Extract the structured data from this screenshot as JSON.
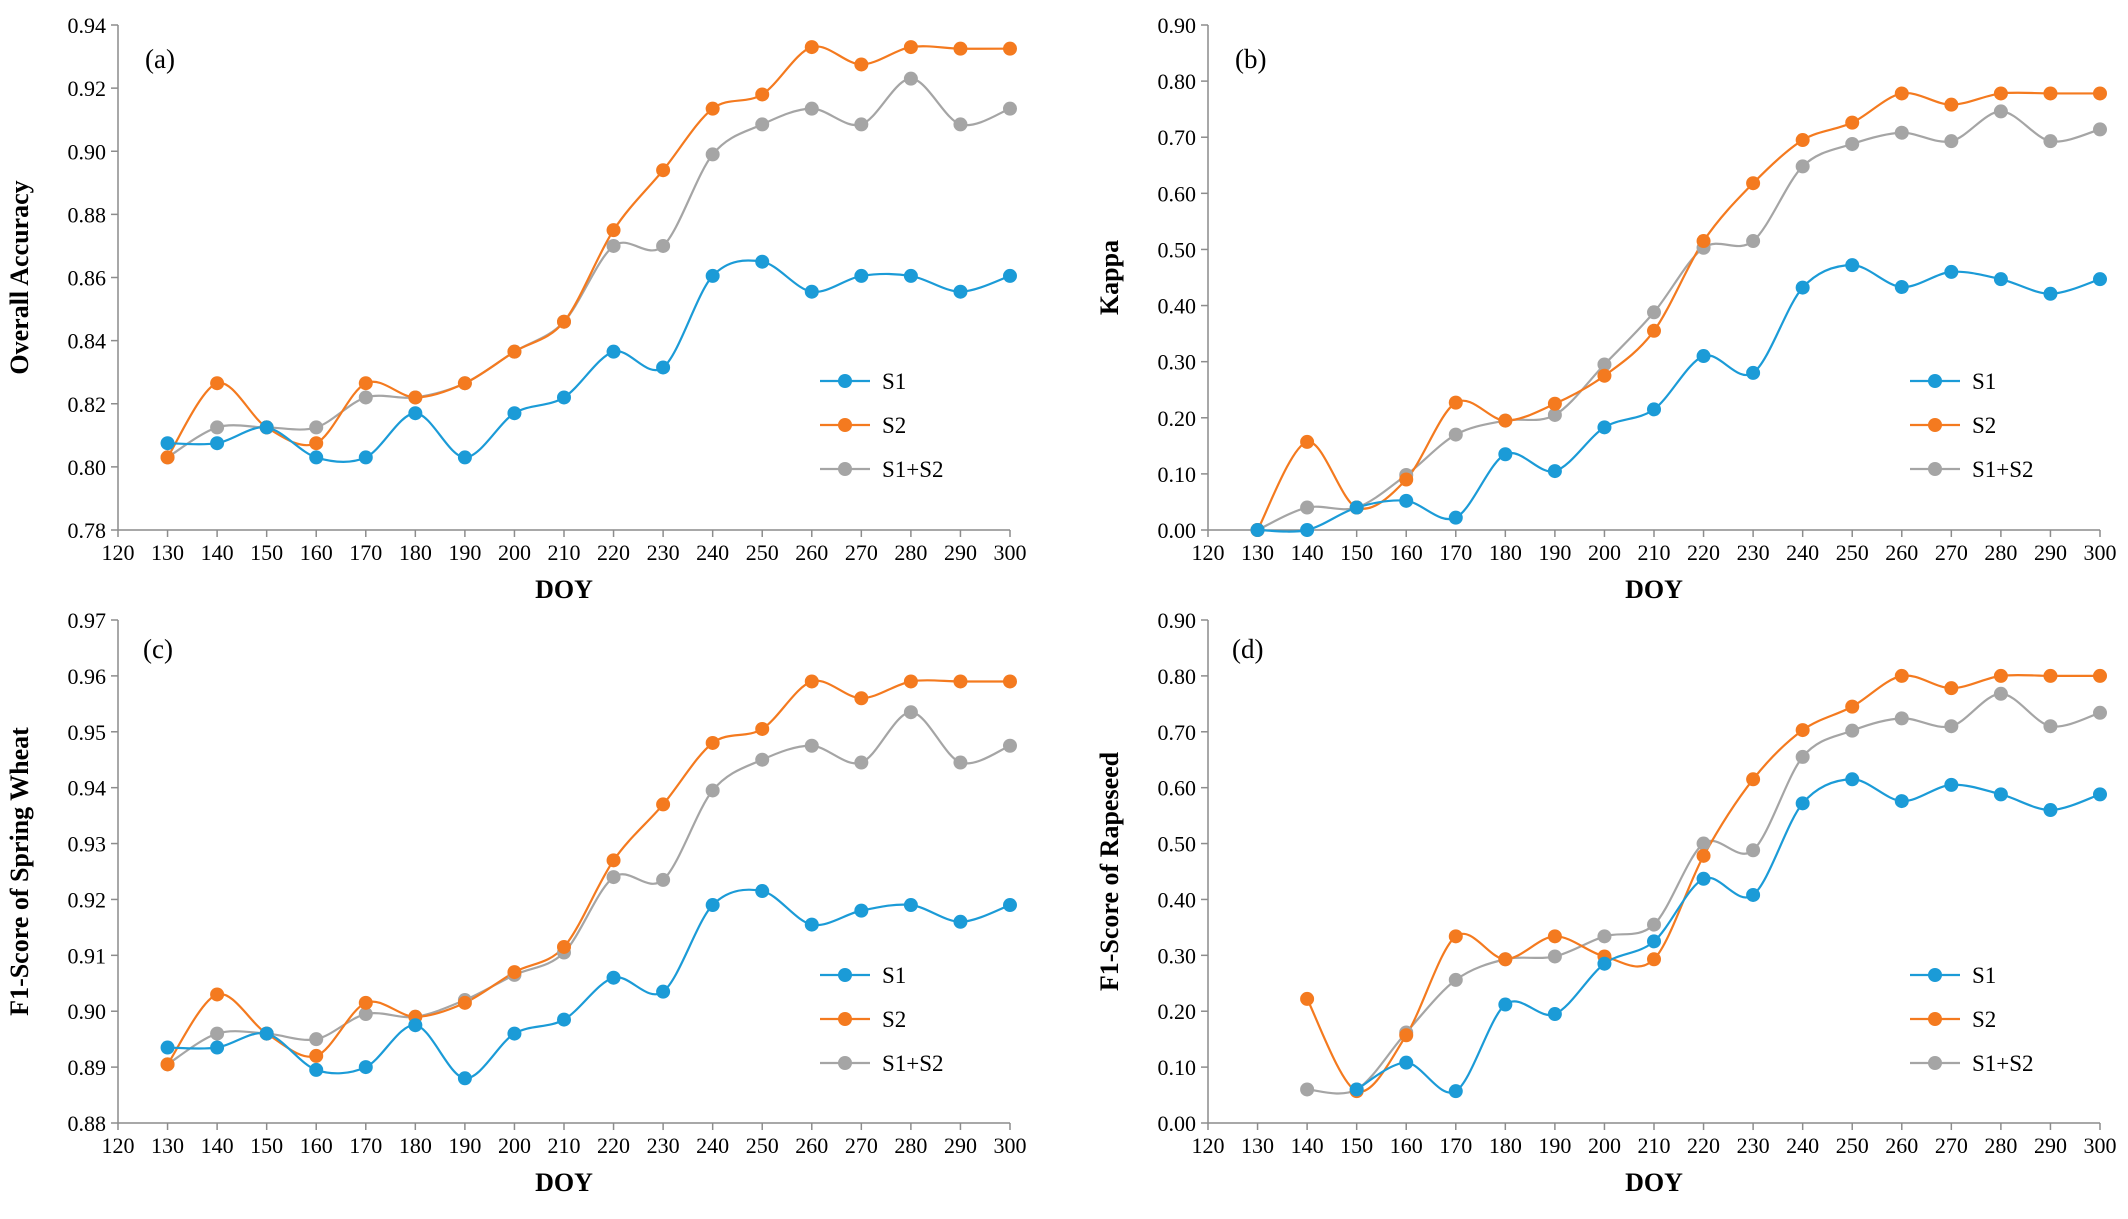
{
  "chart_data": [
    {
      "type": "line",
      "panel_label": "(a)",
      "title": "",
      "xlabel": "DOY",
      "ylabel": "Overall Accuracy",
      "xlim": [
        120,
        300
      ],
      "ylim": [
        0.78,
        0.94
      ],
      "xticks": [
        "120",
        "130",
        "140",
        "150",
        "160",
        "170",
        "180",
        "190",
        "200",
        "210",
        "220",
        "230",
        "240",
        "250",
        "260",
        "270",
        "280",
        "290",
        "300"
      ],
      "yticks": [
        "0.78",
        "0.80",
        "0.82",
        "0.84",
        "0.86",
        "0.88",
        "0.90",
        "0.92",
        "0.94"
      ],
      "legend_position": "right",
      "series": [
        {
          "name": "S1",
          "x": [
            130,
            140,
            150,
            160,
            170,
            180,
            190,
            200,
            210,
            220,
            230,
            240,
            250,
            260,
            270,
            280,
            290,
            300
          ],
          "values": [
            0.8075,
            0.8075,
            0.8125,
            0.803,
            0.803,
            0.817,
            0.803,
            0.817,
            0.822,
            0.8365,
            0.8315,
            0.8605,
            0.865,
            0.8555,
            0.8605,
            0.8605,
            0.8555,
            0.8605
          ]
        },
        {
          "name": "S2",
          "x": [
            130,
            140,
            150,
            160,
            170,
            180,
            190,
            200,
            210,
            220,
            230,
            240,
            250,
            260,
            270,
            280,
            290,
            300
          ],
          "values": [
            0.803,
            0.8265,
            0.8125,
            0.8075,
            0.8265,
            0.822,
            0.8265,
            0.8365,
            0.846,
            0.875,
            0.894,
            0.9135,
            0.918,
            0.933,
            0.9275,
            0.933,
            0.9325,
            0.9325
          ]
        },
        {
          "name": "S1+S2",
          "x": [
            130,
            140,
            150,
            160,
            170,
            180,
            190,
            200,
            210,
            220,
            230,
            240,
            250,
            260,
            270,
            280,
            290,
            300
          ],
          "values": [
            0.803,
            0.8125,
            0.8125,
            0.8125,
            0.822,
            0.822,
            0.8265,
            0.8365,
            0.846,
            0.87,
            0.87,
            0.899,
            0.9085,
            0.9135,
            0.9085,
            0.923,
            0.9085,
            0.9135
          ]
        }
      ]
    },
    {
      "type": "line",
      "panel_label": "(b)",
      "title": "",
      "xlabel": "DOY",
      "ylabel": "Kappa",
      "xlim": [
        120,
        300
      ],
      "ylim": [
        0.0,
        0.9
      ],
      "xticks": [
        "120",
        "130",
        "140",
        "150",
        "160",
        "170",
        "180",
        "190",
        "200",
        "210",
        "220",
        "230",
        "240",
        "250",
        "260",
        "270",
        "280",
        "290",
        "300"
      ],
      "yticks": [
        "0.00",
        "0.10",
        "0.20",
        "0.30",
        "0.40",
        "0.50",
        "0.60",
        "0.70",
        "0.80",
        "0.90"
      ],
      "legend_position": "right",
      "series": [
        {
          "name": "S1",
          "x": [
            130,
            140,
            150,
            160,
            170,
            180,
            190,
            200,
            210,
            220,
            230,
            240,
            250,
            260,
            270,
            280,
            290,
            300
          ],
          "values": [
            0.0,
            0.0,
            0.04,
            0.052,
            0.022,
            0.135,
            0.105,
            0.183,
            0.215,
            0.31,
            0.28,
            0.432,
            0.472,
            0.433,
            0.46,
            0.447,
            0.421,
            0.447
          ]
        },
        {
          "name": "S2",
          "x": [
            130,
            140,
            150,
            160,
            170,
            180,
            190,
            200,
            210,
            220,
            230,
            240,
            250,
            260,
            270,
            280,
            290,
            300
          ],
          "values": [
            0.0,
            0.157,
            0.04,
            0.09,
            0.227,
            0.195,
            0.225,
            0.275,
            0.355,
            0.515,
            0.618,
            0.695,
            0.726,
            0.778,
            0.758,
            0.778,
            0.778,
            0.778
          ]
        },
        {
          "name": "S1+S2",
          "x": [
            130,
            140,
            150,
            160,
            170,
            180,
            190,
            200,
            210,
            220,
            230,
            240,
            250,
            260,
            270,
            280,
            290,
            300
          ],
          "values": [
            0.0,
            0.04,
            0.04,
            0.098,
            0.17,
            0.195,
            0.205,
            0.295,
            0.388,
            0.503,
            0.515,
            0.648,
            0.688,
            0.708,
            0.693,
            0.746,
            0.693,
            0.714
          ]
        }
      ]
    },
    {
      "type": "line",
      "panel_label": "(c)",
      "title": "",
      "xlabel": "DOY",
      "ylabel": "F1-Score of  Spring Wheat",
      "xlim": [
        120,
        300
      ],
      "ylim": [
        0.88,
        0.97
      ],
      "xticks": [
        "120",
        "130",
        "140",
        "150",
        "160",
        "170",
        "180",
        "190",
        "200",
        "210",
        "220",
        "230",
        "240",
        "250",
        "260",
        "270",
        "280",
        "290",
        "300"
      ],
      "yticks": [
        "0.88",
        "0.89",
        "0.90",
        "0.91",
        "0.92",
        "0.93",
        "0.94",
        "0.95",
        "0.96",
        "0.97"
      ],
      "legend_position": "right",
      "series": [
        {
          "name": "S1",
          "x": [
            130,
            140,
            150,
            160,
            170,
            180,
            190,
            200,
            210,
            220,
            230,
            240,
            250,
            260,
            270,
            280,
            290,
            300
          ],
          "values": [
            0.8935,
            0.8935,
            0.896,
            0.8895,
            0.89,
            0.8975,
            0.888,
            0.896,
            0.8985,
            0.906,
            0.9035,
            0.919,
            0.9215,
            0.9155,
            0.918,
            0.919,
            0.916,
            0.919
          ]
        },
        {
          "name": "S2",
          "x": [
            130,
            140,
            150,
            160,
            170,
            180,
            190,
            200,
            210,
            220,
            230,
            240,
            250,
            260,
            270,
            280,
            290,
            300
          ],
          "values": [
            0.8905,
            0.903,
            0.896,
            0.892,
            0.9015,
            0.899,
            0.9015,
            0.907,
            0.9115,
            0.927,
            0.937,
            0.948,
            0.9505,
            0.959,
            0.956,
            0.959,
            0.959,
            0.959
          ]
        },
        {
          "name": "S1+S2",
          "x": [
            130,
            140,
            150,
            160,
            170,
            180,
            190,
            200,
            210,
            220,
            230,
            240,
            250,
            260,
            270,
            280,
            290,
            300
          ],
          "values": [
            0.8905,
            0.896,
            0.896,
            0.895,
            0.8995,
            0.899,
            0.902,
            0.9065,
            0.9105,
            0.924,
            0.9235,
            0.9395,
            0.945,
            0.9475,
            0.9445,
            0.9535,
            0.9445,
            0.9475
          ]
        }
      ]
    },
    {
      "type": "line",
      "panel_label": "(d)",
      "title": "",
      "xlabel": "DOY",
      "ylabel": "F1-Score of  Rapeseed",
      "xlim": [
        120,
        300
      ],
      "ylim": [
        0.0,
        0.9
      ],
      "xticks": [
        "120",
        "130",
        "140",
        "150",
        "160",
        "170",
        "180",
        "190",
        "200",
        "210",
        "220",
        "230",
        "240",
        "250",
        "260",
        "270",
        "280",
        "290",
        "300"
      ],
      "yticks": [
        "0.00",
        "0.10",
        "0.20",
        "0.30",
        "0.40",
        "0.50",
        "0.60",
        "0.70",
        "0.80",
        "0.90"
      ],
      "legend_position": "right",
      "series": [
        {
          "name": "S1",
          "x": [
            150,
            160,
            170,
            180,
            190,
            200,
            210,
            220,
            230,
            240,
            250,
            260,
            270,
            280,
            290,
            300
          ],
          "values": [
            0.06,
            0.108,
            0.057,
            0.212,
            0.195,
            0.285,
            0.325,
            0.437,
            0.408,
            0.572,
            0.615,
            0.576,
            0.605,
            0.588,
            0.56,
            0.588
          ]
        },
        {
          "name": "S2",
          "x": [
            140,
            150,
            160,
            170,
            180,
            190,
            200,
            210,
            220,
            230,
            240,
            250,
            260,
            270,
            280,
            290,
            300
          ],
          "values": [
            0.222,
            0.057,
            0.157,
            0.334,
            0.293,
            0.334,
            0.298,
            0.293,
            0.478,
            0.615,
            0.703,
            0.745,
            0.8,
            0.778,
            0.8,
            0.8,
            0.8
          ]
        },
        {
          "name": "S1+S2",
          "x": [
            140,
            150,
            160,
            170,
            180,
            190,
            200,
            210,
            220,
            230,
            240,
            250,
            260,
            270,
            280,
            290,
            300
          ],
          "values": [
            0.06,
            0.06,
            0.162,
            0.256,
            0.293,
            0.298,
            0.334,
            0.355,
            0.5,
            0.488,
            0.655,
            0.702,
            0.724,
            0.71,
            0.768,
            0.71,
            0.734
          ]
        }
      ]
    }
  ],
  "colors": {
    "S1": "#1b9bd7",
    "S2": "#f47a1f",
    "S1+S2": "#a5a5a5",
    "axis": "#8c8c8c",
    "text": "#000000"
  }
}
